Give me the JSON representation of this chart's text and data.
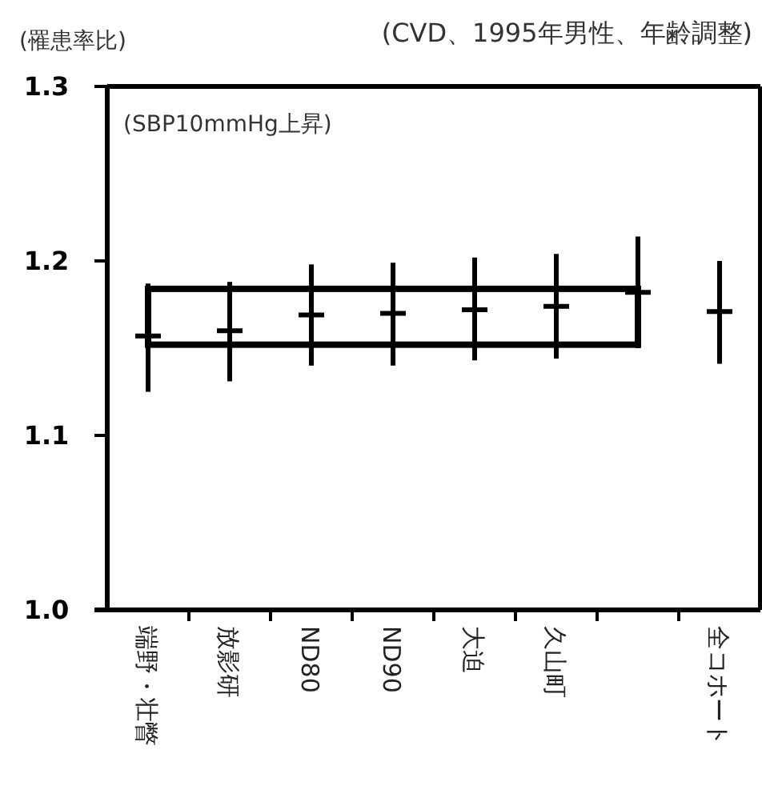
{
  "chart_data": {
    "type": "scatter",
    "title": "(CVD、1995年男性、年齢調整)",
    "ylabel": "(罹患率比)",
    "annotations": [
      "(SBP10mmHg上昇)"
    ],
    "categories": [
      "端野・壮瞥",
      "放影研",
      "ND80",
      "ND90",
      "大迫",
      "久山町",
      null,
      "全コホート"
    ],
    "values": [
      1.157,
      1.16,
      1.169,
      1.17,
      1.172,
      1.174,
      1.182,
      1.171
    ],
    "errors": [
      [
        1.125,
        1.187
      ],
      [
        1.131,
        1.188
      ],
      [
        1.14,
        1.198
      ],
      [
        1.14,
        1.199
      ],
      [
        1.143,
        1.202
      ],
      [
        1.144,
        1.204
      ],
      [
        1.15,
        1.214
      ],
      [
        1.141,
        1.2
      ]
    ],
    "color": "#000000",
    "ylim": [
      1.0,
      1.3
    ],
    "yticks": [
      {
        "value": 1.0,
        "label": "1.0"
      },
      {
        "value": 1.1,
        "label": "1.1"
      },
      {
        "value": 1.2,
        "label": "1.2"
      },
      {
        "value": 1.3,
        "label": "1.3"
      }
    ],
    "grid": false,
    "marker": "cross"
  }
}
